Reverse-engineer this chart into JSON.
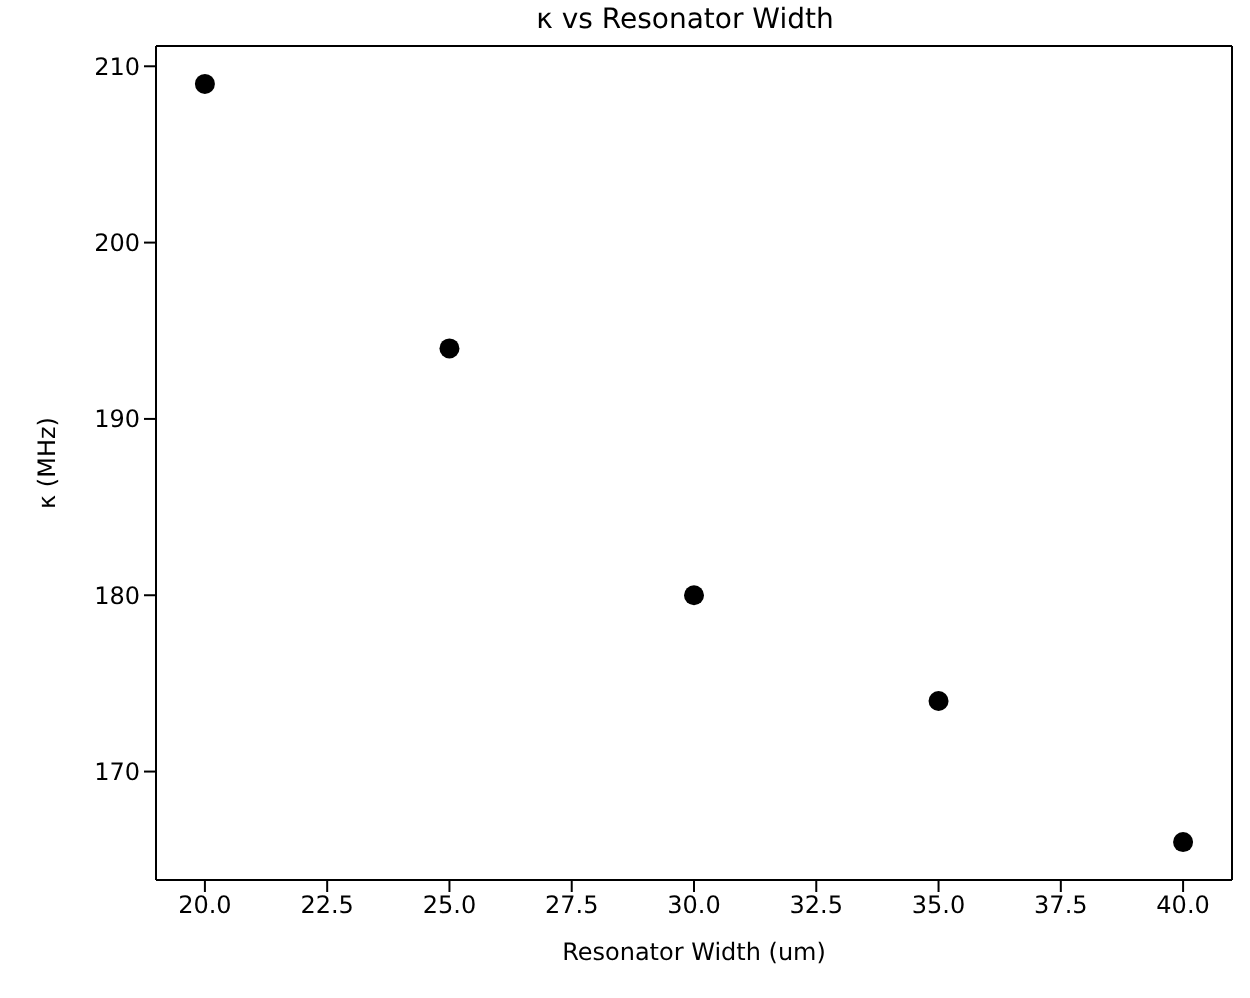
{
  "chart_data": {
    "type": "scatter",
    "title": "κ vs Resonator Width",
    "xlabel": "Resonator Width (um)",
    "ylabel": "κ (MHz)",
    "x": [
      20,
      25,
      30,
      35,
      40
    ],
    "series": [
      {
        "color": "#000000",
        "values": [
          209,
          194,
          180,
          174,
          166
        ]
      }
    ],
    "xlim": [
      19,
      41
    ],
    "ylim": [
      163.85,
      211.15
    ],
    "xticks": [
      {
        "value": 20,
        "label": "20.0"
      },
      {
        "value": 22.5,
        "label": "22.5"
      },
      {
        "value": 25,
        "label": "25.0"
      },
      {
        "value": 27.5,
        "label": "27.5"
      },
      {
        "value": 30,
        "label": "30.0"
      },
      {
        "value": 32.5,
        "label": "32.5"
      },
      {
        "value": 35,
        "label": "35.0"
      },
      {
        "value": 37.5,
        "label": "37.5"
      },
      {
        "value": 40,
        "label": "40.0"
      }
    ],
    "yticks": [
      170,
      180,
      190,
      200,
      210
    ],
    "marker": "circle",
    "legend": false
  }
}
